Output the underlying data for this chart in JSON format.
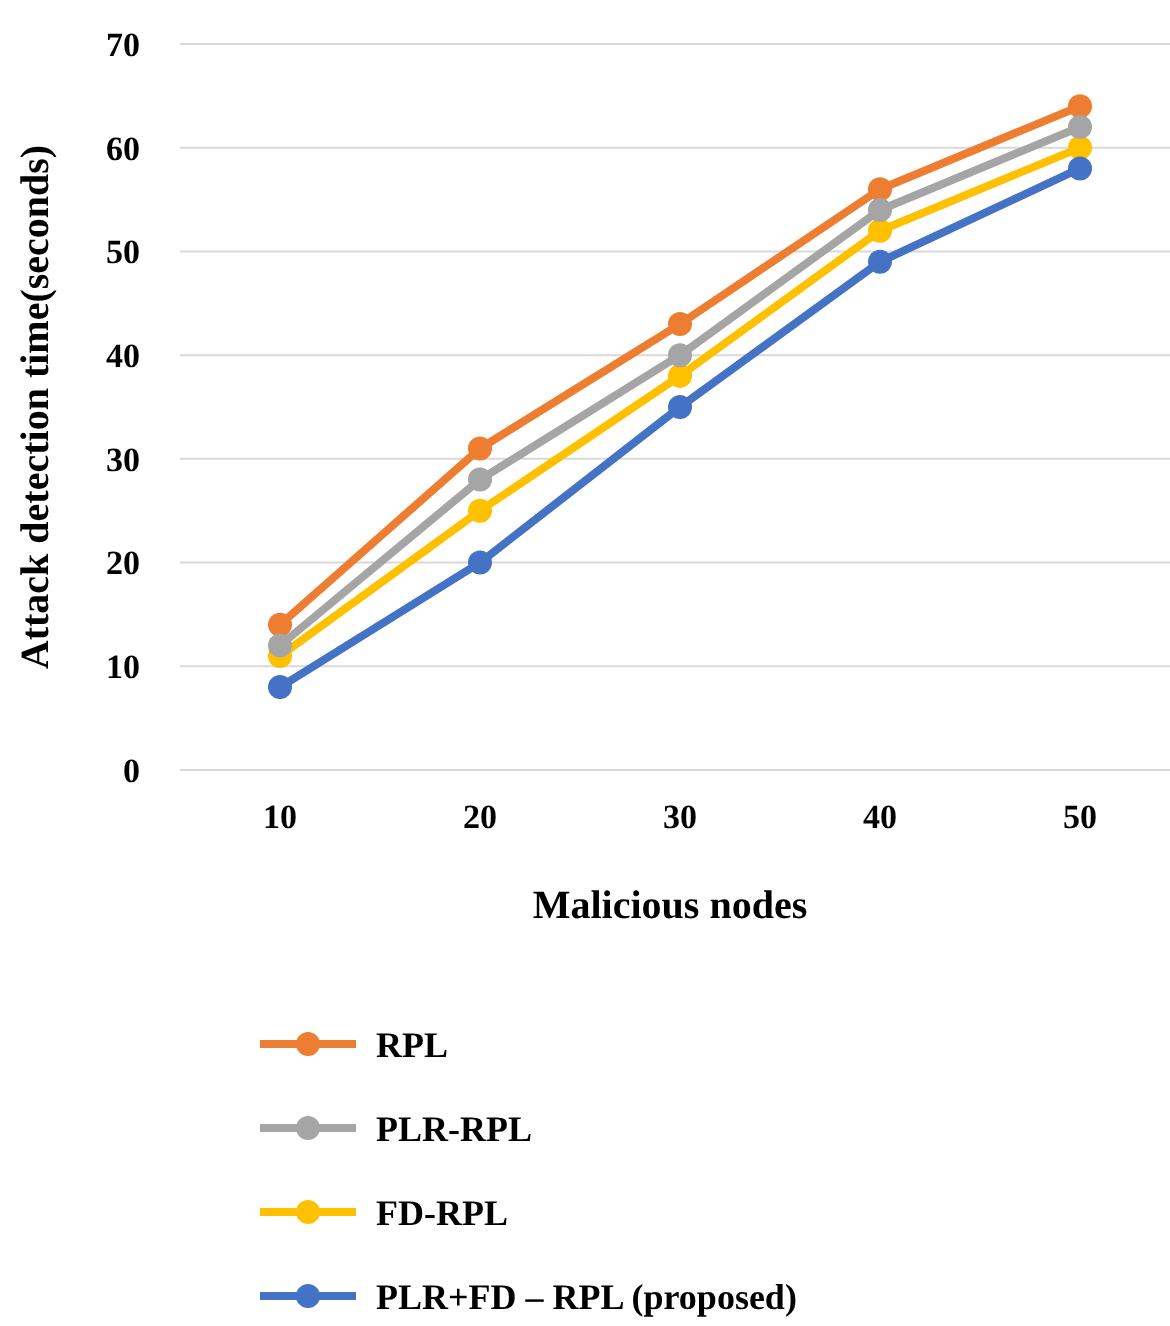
{
  "chart_data": {
    "type": "line",
    "xlabel": "Malicious nodes",
    "ylabel": "Attack detection time(seconds)",
    "categories": [
      "10",
      "20",
      "30",
      "40",
      "50"
    ],
    "series": [
      {
        "name": "RPL",
        "color": "#ed7d31",
        "values": [
          14,
          31,
          43,
          56,
          64
        ]
      },
      {
        "name": "PLR-RPL",
        "color": "#a5a5a5",
        "values": [
          12,
          28,
          40,
          54,
          62
        ]
      },
      {
        "name": "FD-RPL",
        "color": "#ffc000",
        "values": [
          11,
          25,
          38,
          52,
          60
        ]
      },
      {
        "name": "PLR+FD – RPL (proposed)",
        "color": "#4472c4",
        "values": [
          8,
          20,
          35,
          49,
          58
        ]
      }
    ],
    "ylim": [
      0,
      70
    ],
    "yticks": [
      0,
      10,
      20,
      30,
      40,
      50,
      60,
      70
    ],
    "grid": "y",
    "legend": "bottom",
    "marker": "circle",
    "line_style": "solid"
  }
}
